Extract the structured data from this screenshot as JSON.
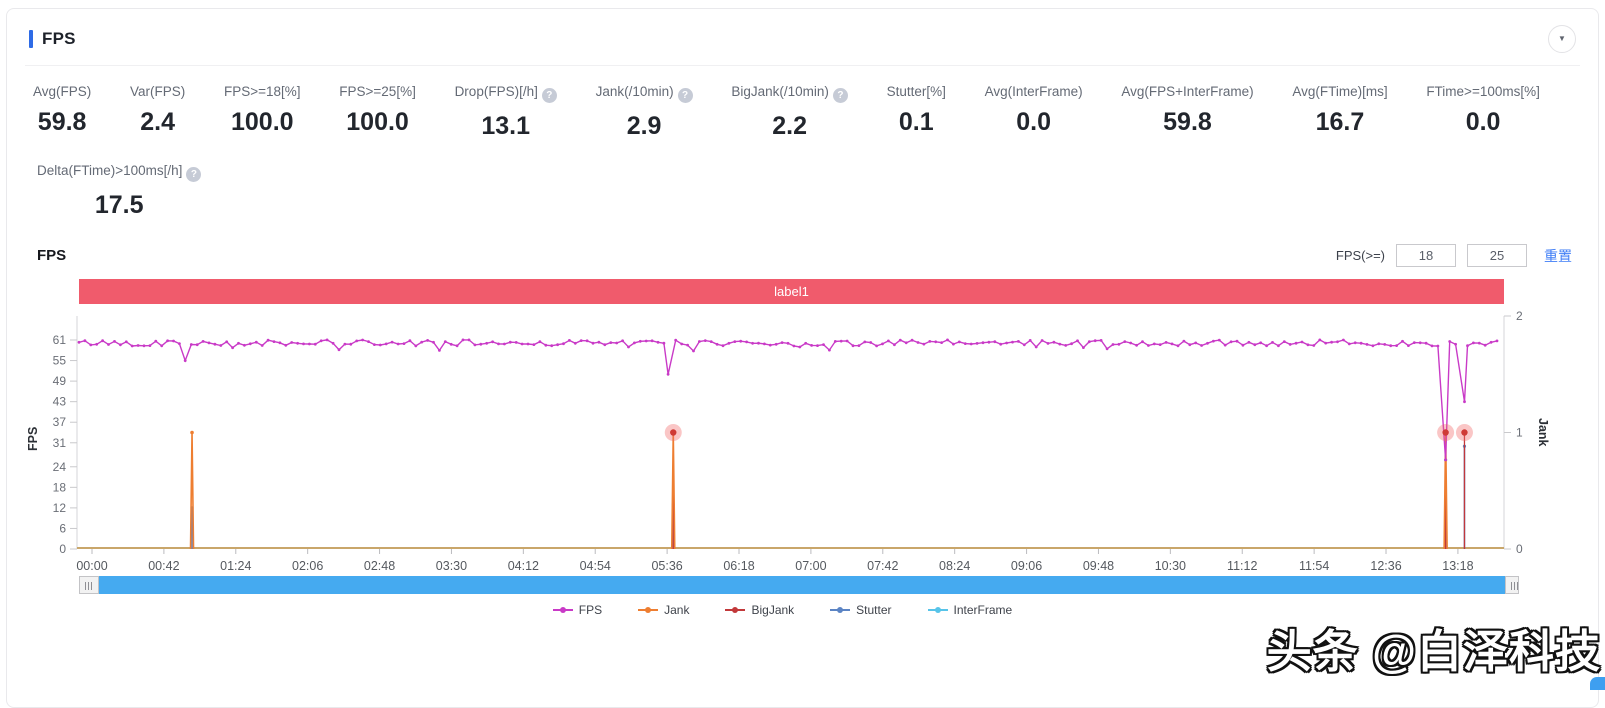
{
  "header": {
    "title": "FPS",
    "collapse_icon": "collapse-panel"
  },
  "stats": {
    "row1": [
      {
        "label": "Avg(FPS)",
        "value": "59.8",
        "help": false
      },
      {
        "label": "Var(FPS)",
        "value": "2.4",
        "help": false
      },
      {
        "label": "FPS>=18[%]",
        "value": "100.0",
        "help": false
      },
      {
        "label": "FPS>=25[%]",
        "value": "100.0",
        "help": false
      },
      {
        "label": "Drop(FPS)[/h]",
        "value": "13.1",
        "help": true
      },
      {
        "label": "Jank(/10min)",
        "value": "2.9",
        "help": true
      },
      {
        "label": "BigJank(/10min)",
        "value": "2.2",
        "help": true
      },
      {
        "label": "Stutter[%]",
        "value": "0.1",
        "help": false
      },
      {
        "label": "Avg(InterFrame)",
        "value": "0.0",
        "help": false
      },
      {
        "label": "Avg(FPS+InterFrame)",
        "value": "59.8",
        "help": false
      },
      {
        "label": "Avg(FTime)[ms]",
        "value": "16.7",
        "help": false
      },
      {
        "label": "FTime>=100ms[%]",
        "value": "0.0",
        "help": false
      }
    ],
    "row2": [
      {
        "label": "Delta(FTime)>100ms[/h]",
        "value": "17.5",
        "help": true
      }
    ]
  },
  "chart_section": {
    "title": "FPS",
    "filter_label": "FPS(>=)",
    "threshold1": "18",
    "threshold2": "25",
    "reset_label": "重置",
    "banner_label": "label1"
  },
  "chart_data": {
    "type": "line",
    "title": "FPS / Jank over time",
    "x_ticks": [
      "00:00",
      "00:42",
      "01:24",
      "02:06",
      "02:48",
      "03:30",
      "04:12",
      "04:54",
      "05:36",
      "06:18",
      "07:00",
      "07:42",
      "08:24",
      "09:06",
      "09:48",
      "10:30",
      "11:12",
      "11:54",
      "12:36",
      "13:18"
    ],
    "x_tick_interval_seconds": 42,
    "duration_seconds": 828,
    "y_left": {
      "label": "FPS",
      "ticks": [
        61,
        55,
        49,
        43,
        37,
        31,
        24,
        18,
        12,
        6,
        0
      ],
      "max": 61
    },
    "y_right": {
      "label": "Jank",
      "ticks": [
        2,
        1,
        0
      ],
      "max": 2
    },
    "grid": false,
    "legend_position": "bottom",
    "series": {
      "fps": {
        "name": "FPS",
        "color": "#c93ac7",
        "baseline": 60,
        "noise": 0.9,
        "dips": [
          {
            "t": 62,
            "fps": 55
          },
          {
            "t": 344,
            "fps": 51
          },
          {
            "t": 798,
            "fps": 26
          },
          {
            "t": 809,
            "fps": 43
          }
        ]
      },
      "jank": {
        "name": "Jank",
        "color": "#ee7e31",
        "baseline": 0,
        "spikes": [
          {
            "t": 66,
            "jank": 1
          },
          {
            "t": 347,
            "jank": 1
          },
          {
            "t": 798,
            "jank": 1
          }
        ]
      },
      "bigjank": {
        "name": "BigJank",
        "color": "#c2383a",
        "baseline": 0,
        "spikes": [
          {
            "t": 347,
            "jank": 1
          },
          {
            "t": 798,
            "jank": 1
          },
          {
            "t": 809,
            "jank": 1
          }
        ]
      },
      "stutter": {
        "name": "Stutter",
        "color": "#5b84c4",
        "baseline": 0,
        "spikes": [
          {
            "t": 66,
            "fps": 12
          },
          {
            "t": 347,
            "fps": 13
          },
          {
            "t": 798,
            "fps": 26
          },
          {
            "t": 809,
            "fps": 30
          }
        ]
      },
      "interframe": {
        "name": "InterFrame",
        "color": "#57c4e9",
        "baseline": 0
      }
    },
    "zero_axis_color": "#c9a66a"
  },
  "legend": [
    {
      "label": "FPS",
      "color": "#c93ac7"
    },
    {
      "label": "Jank",
      "color": "#ee7e31"
    },
    {
      "label": "BigJank",
      "color": "#c2383a"
    },
    {
      "label": "Stutter",
      "color": "#5b84c4"
    },
    {
      "label": "InterFrame",
      "color": "#57c4e9"
    }
  ],
  "watermark": "头条 @白泽科技",
  "colors": {
    "accent": "#2e6be6",
    "banner": "#f05b6c",
    "scrollbar": "#45aaf0",
    "link": "#3f7df6"
  }
}
